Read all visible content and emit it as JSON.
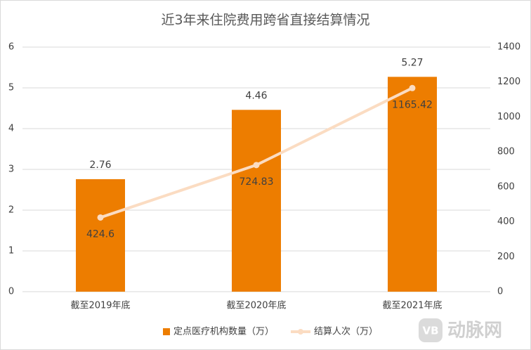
{
  "chart_data": {
    "type": "bar",
    "title": "近3年来住院费用跨省直接结算情况",
    "categories": [
      "截至2019年底",
      "截至2020年底",
      "截至2021年底"
    ],
    "series": [
      {
        "name": "定点医疗机构数量（万）",
        "type": "bar",
        "color": "#ed7d00",
        "values": [
          2.76,
          4.46,
          5.27
        ]
      },
      {
        "name": "结算人次（万）",
        "type": "line",
        "axis": "y2",
        "color": "#fbdcc2",
        "values": [
          424.6,
          724.83,
          1165.42
        ]
      }
    ],
    "ylim": [
      0,
      6
    ],
    "yticks": [
      0,
      1,
      2,
      3,
      4,
      5,
      6
    ],
    "y2lim": [
      0,
      1400
    ],
    "y2ticks": [
      0,
      200,
      400,
      600,
      800,
      1000,
      1200,
      1400
    ],
    "grid": true,
    "legend": "bottom"
  },
  "watermark": {
    "logo": "VB",
    "text": "动脉网"
  }
}
